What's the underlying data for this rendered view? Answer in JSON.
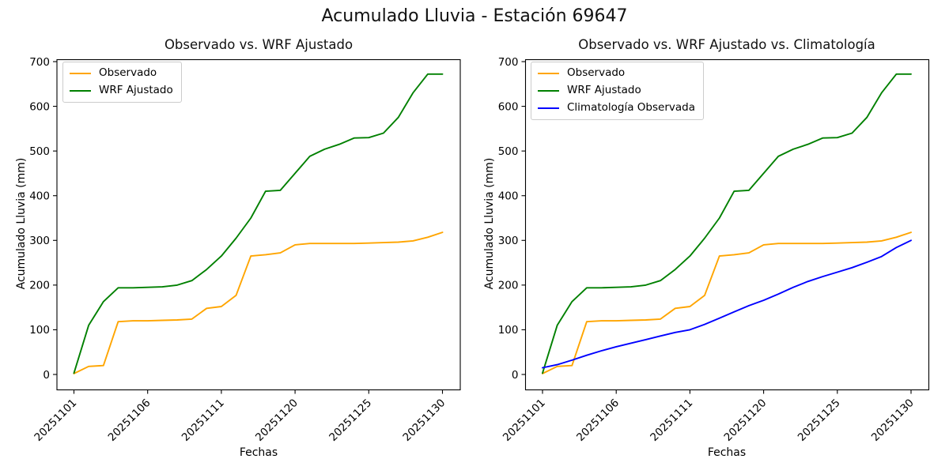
{
  "figure": {
    "suptitle": "Acumulado Lluvia - Estación 69647"
  },
  "chart_data": [
    {
      "type": "line",
      "title": "Observado vs. WRF Ajustado",
      "xlabel": "Fechas",
      "ylabel": "Acumulado Lluvia (mm)",
      "ylim": [
        0,
        700
      ],
      "yticks": [
        0,
        100,
        200,
        300,
        400,
        500,
        600,
        700
      ],
      "x_tick_labels": [
        "20251101",
        "20251106",
        "20251111",
        "20251120",
        "20251125",
        "20251130"
      ],
      "x_tick_indices": [
        0,
        5,
        10,
        15,
        20,
        25
      ],
      "n_points": 26,
      "grid": false,
      "legend_position": "upper left",
      "series": [
        {
          "name": "Observado",
          "color": "#FFA500",
          "values": [
            2,
            18,
            20,
            118,
            120,
            120,
            121,
            122,
            124,
            148,
            152,
            177,
            265,
            268,
            272,
            290,
            293,
            293,
            293,
            293,
            294,
            295,
            296,
            299,
            307,
            318
          ]
        },
        {
          "name": "WRF Ajustado",
          "color": "#008000",
          "values": [
            3,
            110,
            163,
            194,
            194,
            195,
            196,
            200,
            210,
            235,
            265,
            305,
            350,
            410,
            412,
            450,
            488,
            504,
            515,
            529,
            530,
            540,
            575,
            630,
            672,
            672
          ]
        }
      ]
    },
    {
      "type": "line",
      "title": "Observado vs. WRF Ajustado vs. Climatología",
      "xlabel": "Fechas",
      "ylabel": "Acumulado Lluvia (mm)",
      "ylim": [
        0,
        700
      ],
      "yticks": [
        0,
        100,
        200,
        300,
        400,
        500,
        600,
        700
      ],
      "x_tick_labels": [
        "20251101",
        "20251106",
        "20251111",
        "20251120",
        "20251125",
        "20251130"
      ],
      "x_tick_indices": [
        0,
        5,
        10,
        15,
        20,
        25
      ],
      "n_points": 26,
      "grid": false,
      "legend_position": "upper left",
      "series": [
        {
          "name": "Observado",
          "color": "#FFA500",
          "values": [
            2,
            18,
            20,
            118,
            120,
            120,
            121,
            122,
            124,
            148,
            152,
            177,
            265,
            268,
            272,
            290,
            293,
            293,
            293,
            293,
            294,
            295,
            296,
            299,
            307,
            318
          ]
        },
        {
          "name": "WRF Ajustado",
          "color": "#008000",
          "values": [
            3,
            110,
            163,
            194,
            194,
            195,
            196,
            200,
            210,
            235,
            265,
            305,
            350,
            410,
            412,
            450,
            488,
            504,
            515,
            529,
            530,
            540,
            575,
            630,
            672,
            672
          ]
        },
        {
          "name": "Climatología Observada",
          "color": "#0000FF",
          "values": [
            15,
            22,
            32,
            43,
            53,
            62,
            70,
            78,
            86,
            94,
            100,
            112,
            126,
            140,
            154,
            166,
            180,
            195,
            208,
            219,
            229,
            239,
            251,
            264,
            284,
            300
          ]
        }
      ]
    }
  ]
}
